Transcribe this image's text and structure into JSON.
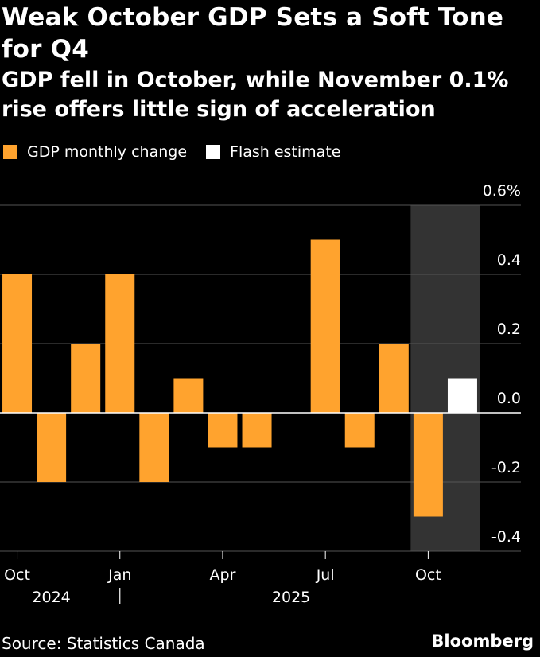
{
  "title": "Weak October GDP Sets a Soft Tone for Q4",
  "subtitle": "GDP fell in October, while November 0.1% rise offers little sign of acceleration",
  "source": "Source: Statistics Canada",
  "brand": "Bloomberg",
  "colors": {
    "background": "#000000",
    "gdp_bar": "#FFA32E",
    "flash_bar": "#FFFFFF",
    "highlight_band": "#333333",
    "gridline": "#555555",
    "zero_line": "#FFFFFF",
    "text": "#FFFFFF"
  },
  "chart_data": {
    "type": "bar",
    "categories": [
      "2024-10",
      "2024-11",
      "2024-12",
      "2025-01",
      "2025-02",
      "2025-03",
      "2025-04",
      "2025-05",
      "2025-06",
      "2025-07",
      "2025-08",
      "2025-09",
      "2025-10",
      "2025-11"
    ],
    "series": [
      {
        "name": "GDP monthly change",
        "color": "#FFA32E",
        "values": [
          0.4,
          -0.2,
          0.2,
          0.4,
          -0.2,
          0.1,
          -0.1,
          -0.1,
          0.0,
          0.5,
          -0.1,
          0.2,
          -0.3,
          null
        ]
      },
      {
        "name": "Flash estimate",
        "color": "#FFFFFF",
        "values": [
          null,
          null,
          null,
          null,
          null,
          null,
          null,
          null,
          null,
          null,
          null,
          null,
          null,
          0.1
        ]
      }
    ],
    "highlight_categories": [
      "2025-10",
      "2025-11"
    ],
    "ylim": [
      -0.4,
      0.6
    ],
    "y_ticks": [
      {
        "value": 0.6,
        "label": "0.6%"
      },
      {
        "value": 0.4,
        "label": "0.4"
      },
      {
        "value": 0.2,
        "label": "0.2"
      },
      {
        "value": 0.0,
        "label": "0.0"
      },
      {
        "value": -0.2,
        "label": "-0.2"
      },
      {
        "value": -0.4,
        "label": "-0.4"
      }
    ],
    "x_ticks": [
      {
        "category": "2024-10",
        "label": "Oct"
      },
      {
        "category": "2025-01",
        "label": "Jan"
      },
      {
        "category": "2025-04",
        "label": "Apr"
      },
      {
        "category": "2025-07",
        "label": "Jul"
      },
      {
        "category": "2025-10",
        "label": "Oct"
      }
    ],
    "year_labels": [
      {
        "category": "2024-11",
        "label": "2024"
      },
      {
        "category": "2025-06",
        "label": "2025"
      }
    ],
    "year_separator_category": "2025-01",
    "legend_position": "top-left",
    "grid": true
  }
}
